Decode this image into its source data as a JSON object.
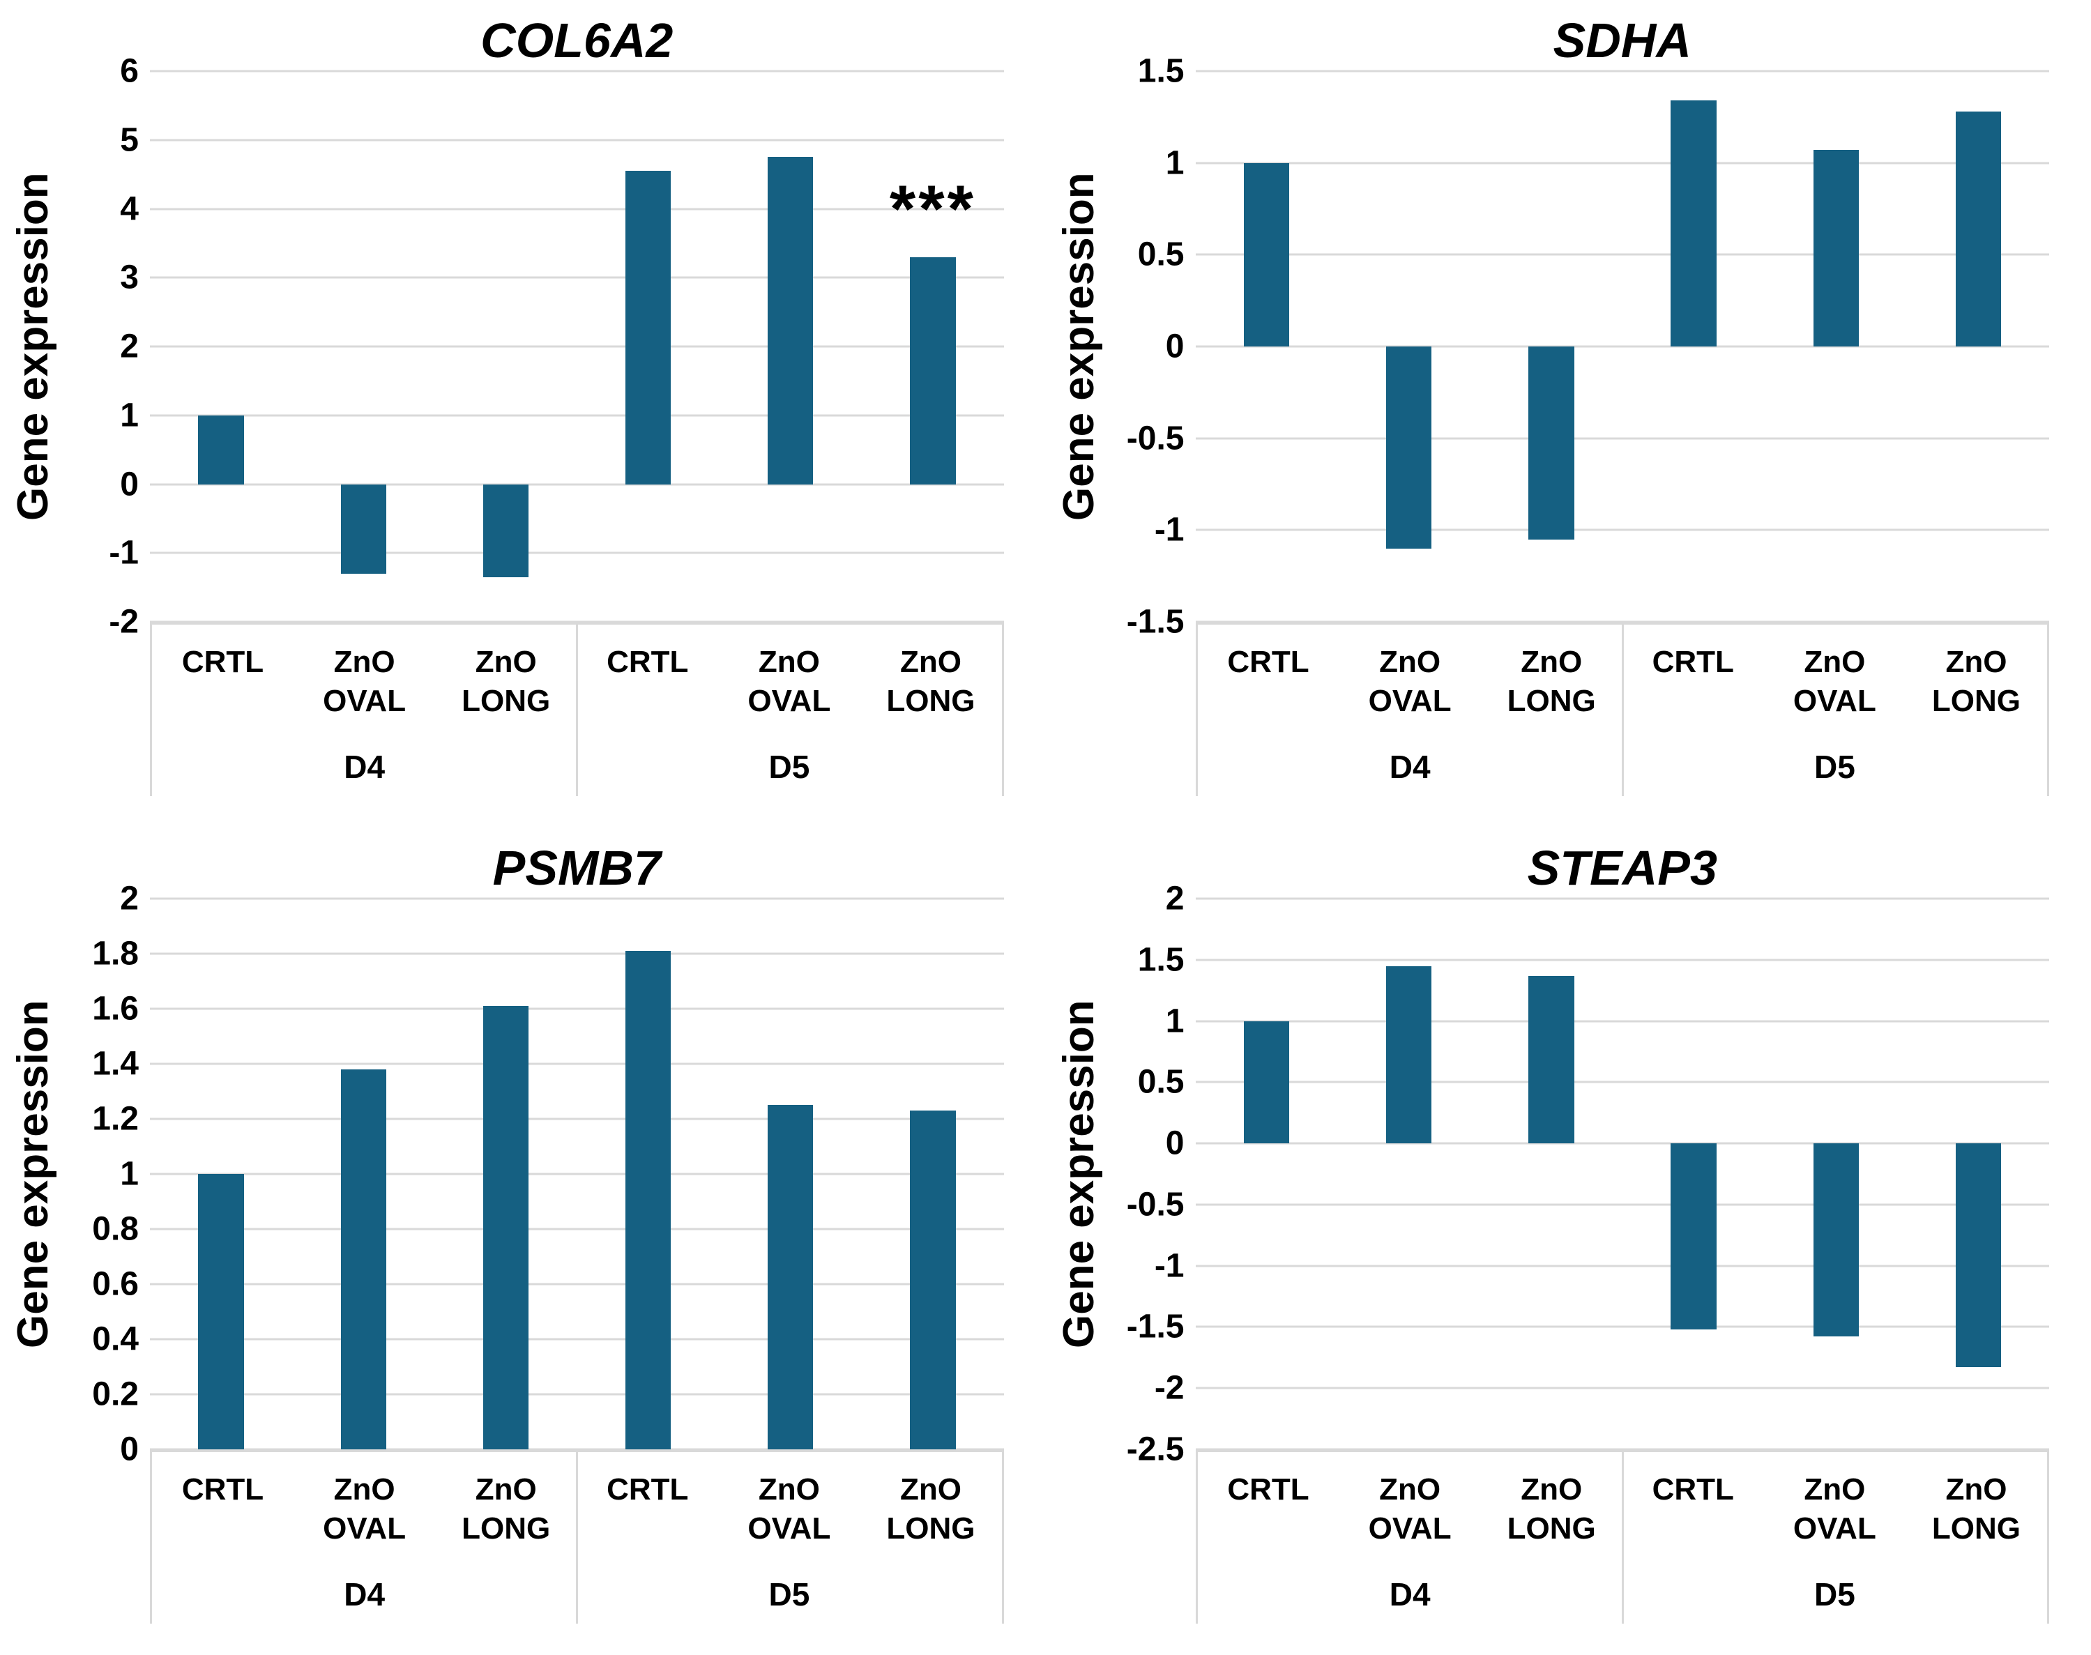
{
  "figure": {
    "background": "#ffffff",
    "layout": "2x2 grid of bar charts"
  },
  "colors": {
    "bar": "#156082",
    "gridline": "#d9d9d9",
    "axis_table_border": "#d9d9d9",
    "text": "#000000"
  },
  "chart_data": [
    {
      "type": "bar",
      "title": "COL6A2",
      "xlabel": "",
      "ylabel": "Gene expression",
      "ylim": [
        -2,
        6
      ],
      "yticks": [
        6,
        5,
        4,
        3,
        2,
        1,
        0,
        -1,
        -2
      ],
      "grid": true,
      "legend_position": "none",
      "categories": [
        "CRTL",
        "ZnO OVAL",
        "ZnO LONG",
        "CRTL",
        "ZnO OVAL",
        "ZnO LONG"
      ],
      "category_lines": [
        [
          "CRTL"
        ],
        [
          "ZnO",
          "OVAL"
        ],
        [
          "ZnO",
          "LONG"
        ],
        [
          "CRTL"
        ],
        [
          "ZnO",
          "OVAL"
        ],
        [
          "ZnO",
          "LONG"
        ]
      ],
      "groups": [
        {
          "label": "D4",
          "span": 3
        },
        {
          "label": "D5",
          "span": 3
        }
      ],
      "values": [
        1.0,
        -1.3,
        -1.35,
        4.55,
        4.75,
        3.3
      ],
      "annotations": [
        {
          "text": "***",
          "category_index": 5
        }
      ]
    },
    {
      "type": "bar",
      "title": "SDHA",
      "xlabel": "",
      "ylabel": "Gene expression",
      "ylim": [
        -1.5,
        1.5
      ],
      "yticks": [
        1.5,
        1,
        0.5,
        0,
        -0.5,
        -1,
        -1.5
      ],
      "grid": true,
      "legend_position": "none",
      "categories": [
        "CRTL",
        "ZnO OVAL",
        "ZnO LONG",
        "CRTL",
        "ZnO OVAL",
        "ZnO LONG"
      ],
      "category_lines": [
        [
          "CRTL"
        ],
        [
          "ZnO",
          "OVAL"
        ],
        [
          "ZnO",
          "LONG"
        ],
        [
          "CRTL"
        ],
        [
          "ZnO",
          "OVAL"
        ],
        [
          "ZnO",
          "LONG"
        ]
      ],
      "groups": [
        {
          "label": "D4",
          "span": 3
        },
        {
          "label": "D5",
          "span": 3
        }
      ],
      "values": [
        1.0,
        -1.1,
        -1.05,
        1.34,
        1.07,
        1.28
      ],
      "annotations": []
    },
    {
      "type": "bar",
      "title": "PSMB7",
      "xlabel": "",
      "ylabel": "Gene expression",
      "ylim": [
        0,
        2
      ],
      "yticks": [
        2,
        1.8,
        1.6,
        1.4,
        1.2,
        1,
        0.8,
        0.6,
        0.4,
        0.2,
        0
      ],
      "grid": true,
      "legend_position": "none",
      "categories": [
        "CRTL",
        "ZnO OVAL",
        "ZnO LONG",
        "CRTL",
        "ZnO OVAL",
        "ZnO LONG"
      ],
      "category_lines": [
        [
          "CRTL"
        ],
        [
          "ZnO",
          "OVAL"
        ],
        [
          "ZnO",
          "LONG"
        ],
        [
          "CRTL"
        ],
        [
          "ZnO",
          "OVAL"
        ],
        [
          "ZnO",
          "LONG"
        ]
      ],
      "groups": [
        {
          "label": "D4",
          "span": 3
        },
        {
          "label": "D5",
          "span": 3
        }
      ],
      "values": [
        1.0,
        1.38,
        1.61,
        1.81,
        1.25,
        1.23
      ],
      "annotations": []
    },
    {
      "type": "bar",
      "title": "STEAP3",
      "xlabel": "",
      "ylabel": "Gene expression",
      "ylim": [
        -2.5,
        2
      ],
      "yticks": [
        2,
        1.5,
        1,
        0.5,
        0,
        -0.5,
        -1,
        -1.5,
        -2,
        -2.5
      ],
      "grid": true,
      "legend_position": "none",
      "categories": [
        "CRTL",
        "ZnO OVAL",
        "ZnO LONG",
        "CRTL",
        "ZnO OVAL",
        "ZnO LONG"
      ],
      "category_lines": [
        [
          "CRTL"
        ],
        [
          "ZnO",
          "OVAL"
        ],
        [
          "ZnO",
          "LONG"
        ],
        [
          "CRTL"
        ],
        [
          "ZnO",
          "OVAL"
        ],
        [
          "ZnO",
          "LONG"
        ]
      ],
      "groups": [
        {
          "label": "D4",
          "span": 3
        },
        {
          "label": "D5",
          "span": 3
        }
      ],
      "values": [
        1.0,
        1.45,
        1.37,
        -1.52,
        -1.58,
        -1.83
      ],
      "annotations": []
    }
  ]
}
